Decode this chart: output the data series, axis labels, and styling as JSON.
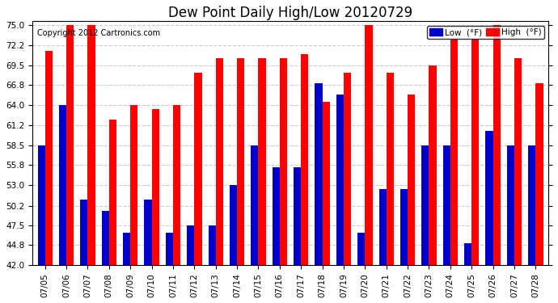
{
  "title": "Dew Point Daily High/Low 20120729",
  "copyright": "Copyright 2012 Cartronics.com",
  "dates": [
    "07/05",
    "07/06",
    "07/07",
    "07/08",
    "07/09",
    "07/10",
    "07/11",
    "07/12",
    "07/13",
    "07/14",
    "07/15",
    "07/16",
    "07/17",
    "07/18",
    "07/19",
    "07/20",
    "07/21",
    "07/22",
    "07/23",
    "07/24",
    "07/25",
    "07/26",
    "07/27",
    "07/28"
  ],
  "high": [
    71.5,
    75.0,
    75.0,
    62.0,
    64.0,
    63.5,
    64.0,
    68.5,
    70.5,
    70.5,
    70.5,
    70.5,
    71.0,
    64.5,
    68.5,
    75.0,
    68.5,
    65.5,
    69.5,
    73.0,
    73.0,
    75.0,
    70.5,
    67.0
  ],
  "low": [
    58.5,
    64.0,
    51.0,
    49.5,
    46.5,
    51.0,
    46.5,
    47.5,
    47.5,
    53.0,
    58.5,
    55.5,
    55.5,
    67.0,
    65.5,
    46.5,
    52.5,
    52.5,
    58.5,
    58.5,
    45.0,
    60.5,
    58.5,
    58.5
  ],
  "ylim": [
    42.0,
    75.5
  ],
  "yticks": [
    42.0,
    44.8,
    47.5,
    50.2,
    53.0,
    55.8,
    58.5,
    61.2,
    64.0,
    66.8,
    69.5,
    72.2,
    75.0
  ],
  "bar_width": 0.35,
  "high_color": "#ff0000",
  "low_color": "#0000cc",
  "bg_color": "#ffffff",
  "grid_color": "#cccccc",
  "legend_low_label": "Low  (°F)",
  "legend_high_label": "High  (°F)"
}
